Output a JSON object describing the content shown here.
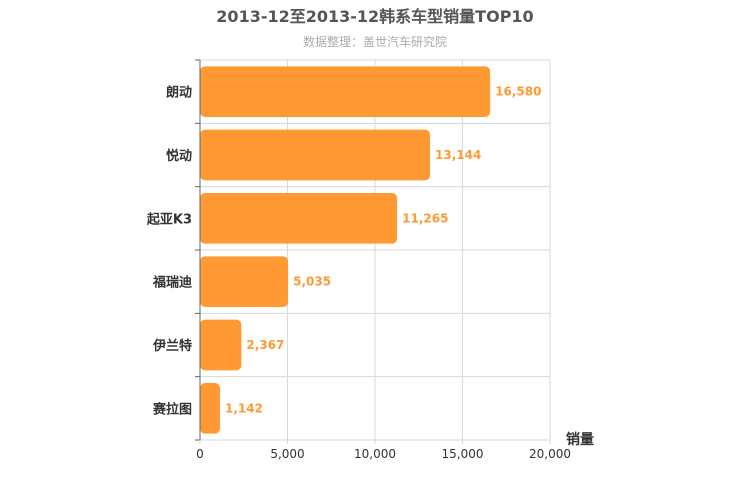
{
  "chart_data": {
    "type": "bar",
    "orientation": "horizontal",
    "title": "2013-12至2013-12韩系车型销量TOP10",
    "subtitle": "数据整理：盖世汽车研究院",
    "categories": [
      "朗动",
      "悦动",
      "起亚K3",
      "福瑞迪",
      "伊兰特",
      "赛拉图"
    ],
    "values": [
      16580,
      13144,
      11265,
      5035,
      2367,
      1142
    ],
    "value_labels": [
      "16,580",
      "13,144",
      "11,265",
      "5,035",
      "2,367",
      "1,142"
    ],
    "xlabel": "销量",
    "ylabel": "",
    "xlim": [
      0,
      20000
    ],
    "ticks": [
      0,
      5000,
      10000,
      15000,
      20000
    ],
    "tick_labels": [
      "0",
      "5,000",
      "10,000",
      "15,000",
      "20,000"
    ],
    "grid": true,
    "bar_color": "#ff9933",
    "label_color": "#ff9933"
  }
}
